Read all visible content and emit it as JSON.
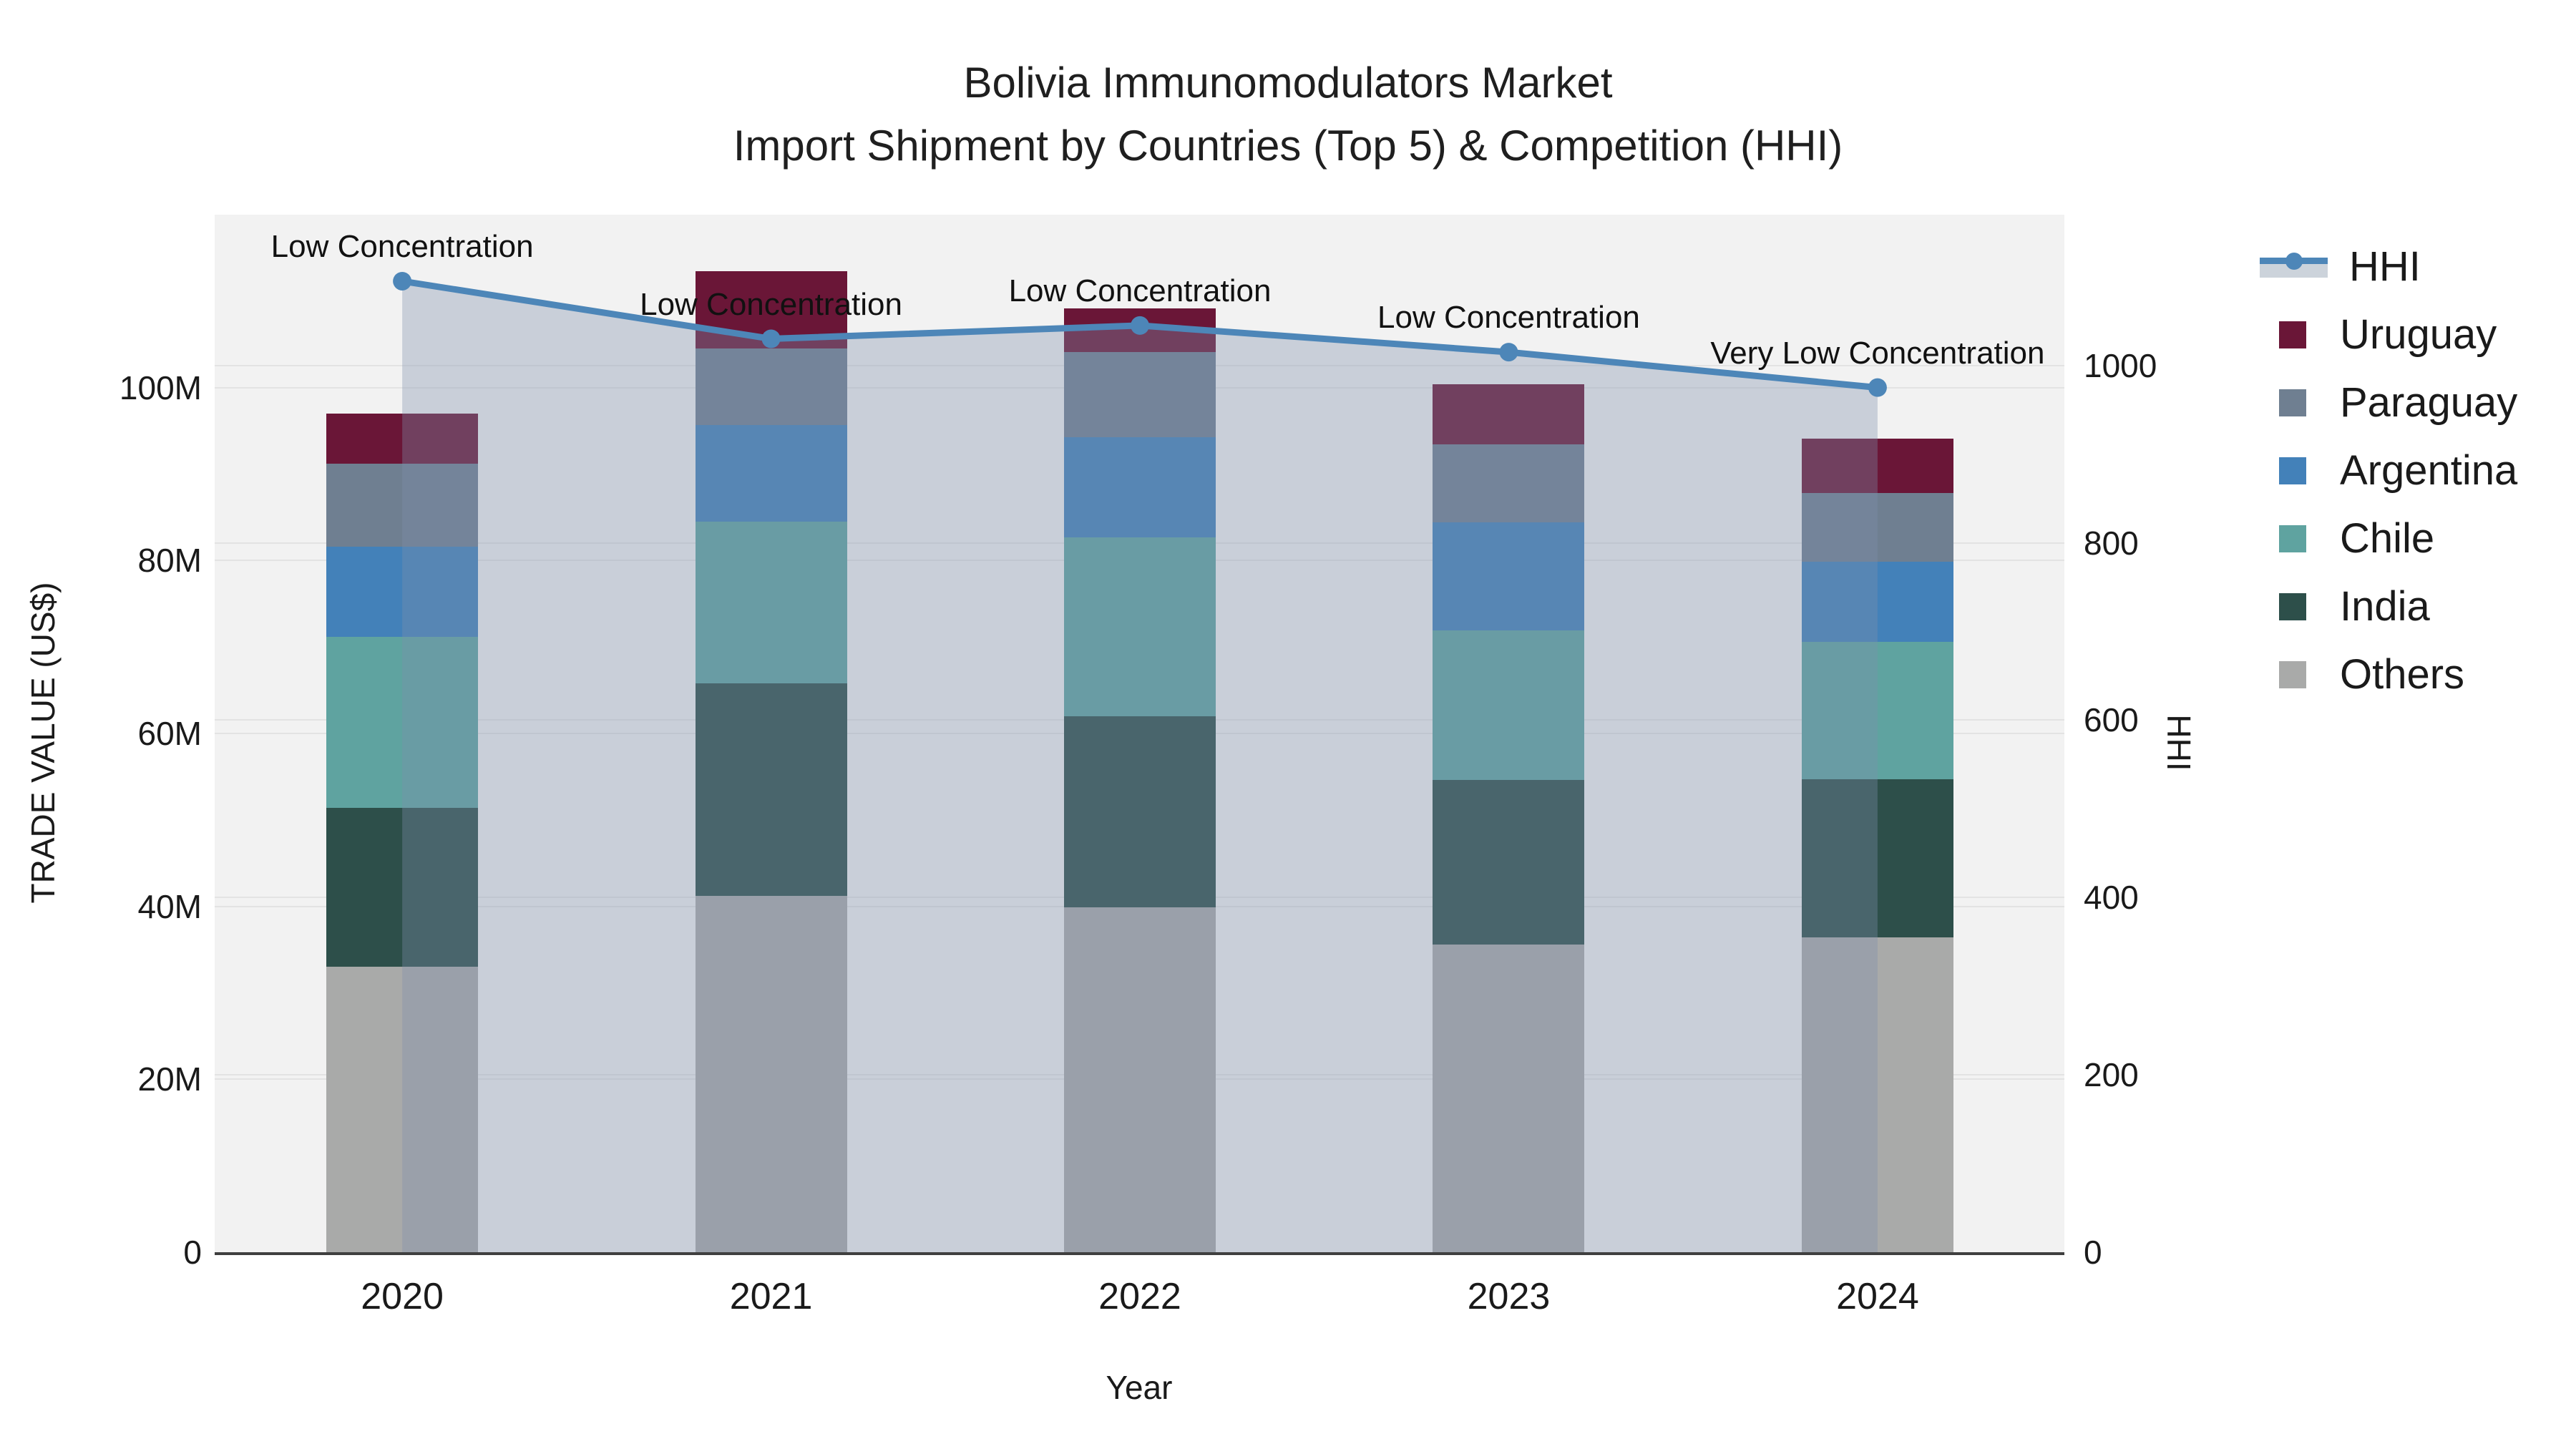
{
  "title": {
    "line1": "Bolivia Immunomodulators Market",
    "line2": "Import Shipment by Countries (Top 5) & Competition (HHI)"
  },
  "axes": {
    "left": {
      "title": "TRADE VALUE (US$)",
      "tick_labels": [
        "0",
        "20M",
        "40M",
        "60M",
        "80M",
        "100M"
      ],
      "tick_values": [
        0,
        20,
        40,
        60,
        80,
        100
      ],
      "max": 120
    },
    "right": {
      "title": "HHI",
      "tick_labels": [
        "0",
        "200",
        "400",
        "600",
        "800",
        "1000"
      ],
      "tick_values": [
        0,
        200,
        400,
        600,
        800,
        1000
      ],
      "max": 1170
    },
    "x": {
      "title": "Year"
    }
  },
  "chart_data": {
    "type": "combo: stacked-bar (trade value, M US$) + line (HHI, right axis)",
    "categories": [
      "2020",
      "2021",
      "2022",
      "2023",
      "2024"
    ],
    "ylabel_left": "TRADE VALUE (US$)",
    "ylabel_right": "HHI",
    "ylim_left_millions": [
      0,
      120
    ],
    "ylim_right": [
      0,
      1170
    ],
    "series": [
      {
        "name": "Others",
        "color": "#a9aaa9",
        "values_millions": [
          33.0,
          41.2,
          39.9,
          35.6,
          36.4
        ]
      },
      {
        "name": "India",
        "color": "#2d4f4a",
        "values_millions": [
          18.4,
          24.6,
          22.1,
          19.0,
          18.3
        ]
      },
      {
        "name": "Chile",
        "color": "#5fa3a0",
        "values_millions": [
          19.8,
          18.7,
          20.7,
          17.3,
          15.9
        ]
      },
      {
        "name": "Argentina",
        "color": "#4381b9",
        "values_millions": [
          10.4,
          11.2,
          11.6,
          12.5,
          9.3
        ]
      },
      {
        "name": "Paraguay",
        "color": "#6f7f91",
        "values_millions": [
          9.6,
          8.8,
          9.8,
          9.0,
          7.9
        ]
      },
      {
        "name": "Uruguay",
        "color": "#6a1637",
        "values_millions": [
          5.8,
          9.0,
          5.1,
          7.0,
          6.3
        ]
      }
    ],
    "line_series": {
      "name": "HHI",
      "color": "#4d86b8",
      "fill_color": "rgba(125,144,172,0.35)",
      "values": [
        1095,
        1030,
        1045,
        1015,
        975
      ]
    },
    "annotations": [
      "Low Concentration",
      "Low Concentration",
      "Low Concentration",
      "Low Concentration",
      "Very Low Concentration"
    ]
  },
  "legend": {
    "items": [
      {
        "label": "HHI",
        "type": "line",
        "color": "#4d86b8"
      },
      {
        "label": "Uruguay",
        "type": "swatch",
        "color": "#6a1637"
      },
      {
        "label": "Paraguay",
        "type": "swatch",
        "color": "#6f7f91"
      },
      {
        "label": "Argentina",
        "type": "swatch",
        "color": "#4381b9"
      },
      {
        "label": "Chile",
        "type": "swatch",
        "color": "#5fa3a0"
      },
      {
        "label": "India",
        "type": "swatch",
        "color": "#2d4f4a"
      },
      {
        "label": "Others",
        "type": "swatch",
        "color": "#a9aaa9"
      }
    ]
  },
  "colors": {
    "plot_bg": "#f2f2f2",
    "gridline": "#e3e3e3",
    "axis_line": "#3f3f3f",
    "text": "#1a1a1a"
  }
}
